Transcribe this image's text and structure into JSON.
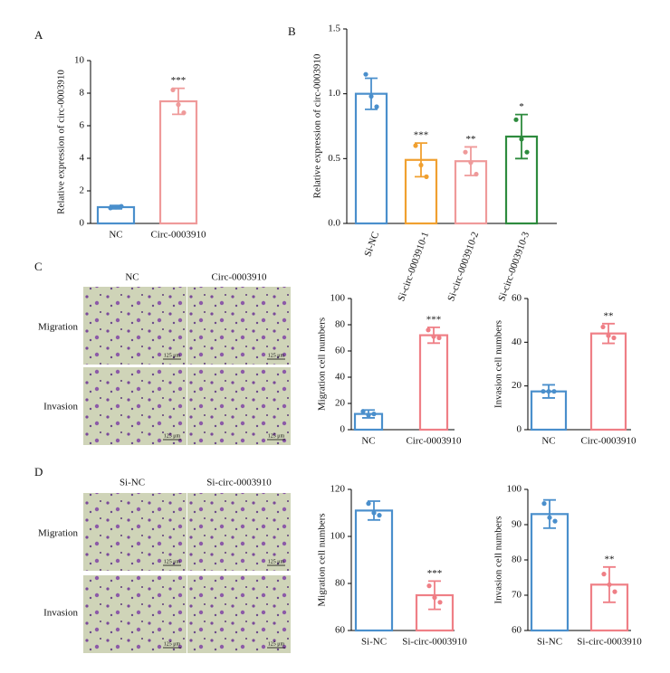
{
  "figure": {
    "panel_labels": [
      "A",
      "B",
      "C",
      "D"
    ],
    "c_columns": [
      "NC",
      "Circ-0003910"
    ],
    "d_columns": [
      "Si-NC",
      "Si-circ-0003910"
    ],
    "rows": [
      "Migration",
      "Invasion"
    ],
    "scale_bar": "125 μm"
  },
  "chart_data": [
    {
      "type": "bar",
      "ylabel": "Relative expression of circ-0003910",
      "categories": [
        "NC",
        "Circ-0003910"
      ],
      "values": [
        1.0,
        7.5
      ],
      "errors": [
        0.1,
        0.8
      ],
      "points": [
        [
          0.95,
          1.0,
          1.05
        ],
        [
          8.2,
          7.3,
          6.8
        ]
      ],
      "colors": [
        "#4a8fcc",
        "#ef9a9a"
      ],
      "annotations": [
        null,
        "***"
      ],
      "ylim": [
        0,
        10
      ],
      "yticks": [
        0,
        2,
        4,
        6,
        8,
        10
      ]
    },
    {
      "type": "bar",
      "ylabel": "Relative expression of circ-0003910",
      "categories": [
        "Si-NC",
        "Si-circ-0003910-1",
        "Si-circ-0003910-2",
        "Si-circ-0003910-3"
      ],
      "values": [
        1.0,
        0.49,
        0.48,
        0.67
      ],
      "errors": [
        0.12,
        0.13,
        0.11,
        0.17
      ],
      "points": [
        [
          1.15,
          0.98,
          0.9
        ],
        [
          0.6,
          0.45,
          0.36
        ],
        [
          0.55,
          0.47,
          0.38
        ],
        [
          0.8,
          0.65,
          0.55
        ]
      ],
      "colors": [
        "#4a8fcc",
        "#f0a030",
        "#ef9a9a",
        "#2e8b3e"
      ],
      "annotations": [
        null,
        "***",
        "**",
        "*"
      ],
      "ylim": [
        0,
        1.5
      ],
      "yticks": [
        {
          "value": 0,
          "label": "0.0"
        },
        0.5,
        {
          "value": 1,
          "label": "1.0"
        },
        1.5
      ]
    },
    {
      "type": "bar",
      "ylabel": "Migration cell numbers",
      "categories": [
        "NC",
        "Circ-0003910"
      ],
      "values": [
        12,
        72
      ],
      "errors": [
        3,
        6
      ],
      "points": [
        [
          14,
          11,
          12
        ],
        [
          76,
          71,
          70
        ]
      ],
      "colors": [
        "#4a8fcc",
        "#ef7f86"
      ],
      "annotations": [
        null,
        "***"
      ],
      "ylim": [
        0,
        100
      ],
      "yticks": [
        0,
        20,
        40,
        60,
        80,
        100
      ]
    },
    {
      "type": "bar",
      "ylabel": "Invasion cell numbers",
      "categories": [
        "NC",
        "Circ-0003910"
      ],
      "values": [
        17.5,
        44
      ],
      "errors": [
        3,
        4.5
      ],
      "points": [
        [
          17.5,
          17.5,
          17.5
        ],
        [
          47,
          43,
          42
        ]
      ],
      "colors": [
        "#4a8fcc",
        "#ef7f86"
      ],
      "annotations": [
        null,
        "**"
      ],
      "ylim": [
        0,
        60
      ],
      "yticks": [
        0,
        20,
        40,
        60
      ]
    },
    {
      "type": "bar",
      "ylabel": "Migration cell numbers",
      "categories": [
        "Si-NC",
        "Si-circ-0003910"
      ],
      "values": [
        111,
        75
      ],
      "errors": [
        4,
        6
      ],
      "points": [
        [
          114,
          110,
          109
        ],
        [
          79,
          74,
          72
        ]
      ],
      "colors": [
        "#4a8fcc",
        "#ef7f86"
      ],
      "annotations": [
        null,
        "***"
      ],
      "ylim": [
        60,
        120
      ],
      "yticks": [
        60,
        80,
        100,
        120
      ]
    },
    {
      "type": "bar",
      "ylabel": "Invasion cell numbers",
      "categories": [
        "Si-NC",
        "Si-circ-0003910"
      ],
      "values": [
        93,
        73
      ],
      "errors": [
        4,
        5
      ],
      "points": [
        [
          96,
          92,
          91
        ],
        [
          76,
          73,
          71
        ]
      ],
      "colors": [
        "#4a8fcc",
        "#ef7f86"
      ],
      "annotations": [
        null,
        "**"
      ],
      "ylim": [
        60,
        100
      ],
      "yticks": [
        60,
        70,
        80,
        90,
        100
      ]
    }
  ]
}
